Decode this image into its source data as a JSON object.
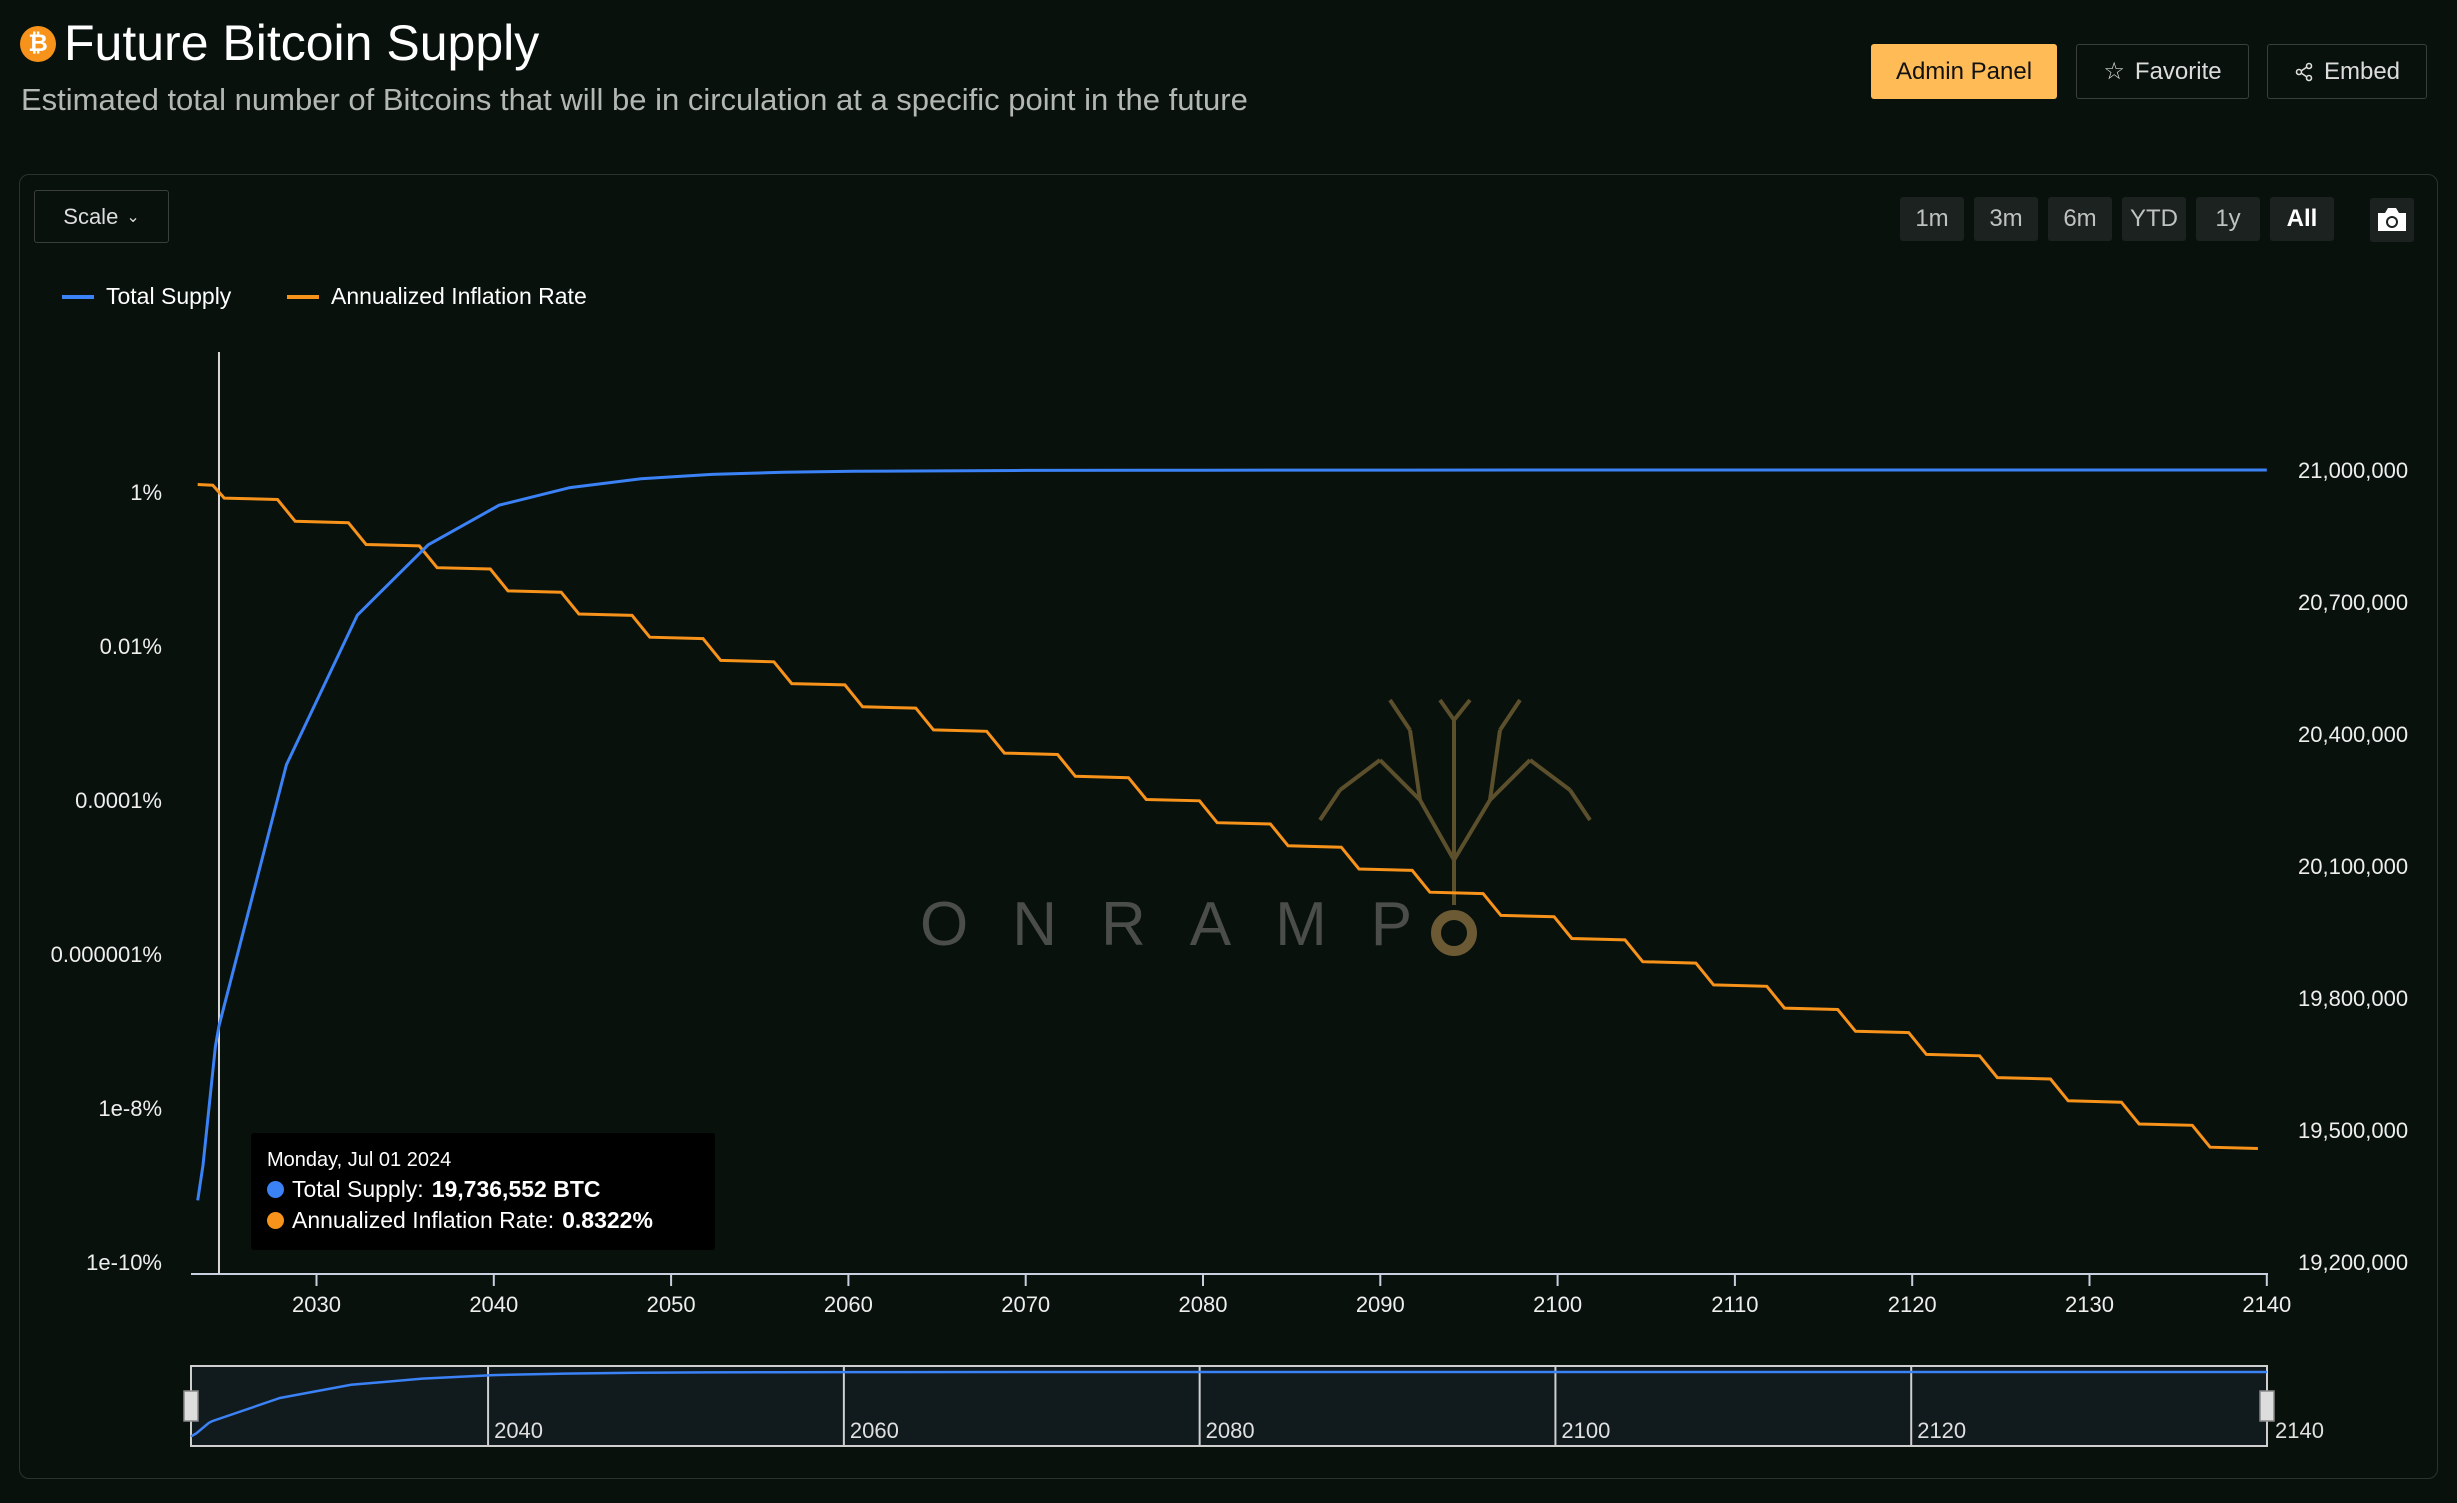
{
  "header": {
    "title": "Future Bitcoin Supply",
    "subtitle": "Estimated total number of Bitcoins that will be in circulation at a specific point in the future",
    "buttons": {
      "admin": "Admin Panel",
      "favorite": "Favorite",
      "embed": "Embed"
    }
  },
  "toolbar": {
    "scale_label": "Scale",
    "ranges": [
      "1m",
      "3m",
      "6m",
      "YTD",
      "1y",
      "All"
    ],
    "active_range": "All"
  },
  "tooltip": {
    "date": "Monday, Jul 01 2024",
    "supply_label": "Total Supply:",
    "supply_value": "19,736,552 BTC",
    "inflation_label": "Annualized Inflation Rate:",
    "inflation_value": "0.8322%"
  },
  "watermark": "ONRAMP",
  "colors": {
    "supply": "#3b82f6",
    "inflation": "#f7931a",
    "accent": "#ffbb55"
  },
  "chart_data": {
    "type": "line",
    "title": "Future Bitcoin Supply",
    "x_range": [
      2023.3,
      2140
    ],
    "x_ticks": [
      "2030",
      "2040",
      "2050",
      "2060",
      "2070",
      "2080",
      "2090",
      "2100",
      "2110",
      "2120",
      "2130",
      "2140"
    ],
    "legend": [
      "Total Supply",
      "Annualized Inflation Rate"
    ],
    "legend_position": "top-left",
    "y_left": {
      "label": "Annualized Inflation Rate",
      "scale": "log",
      "ticks": [
        "1%",
        "0.01%",
        "0.0001%",
        "0.000001%",
        "1e-8%",
        "1e-10%"
      ],
      "tick_values": [
        1,
        0.01,
        0.0001,
        1e-06,
        1e-08,
        1e-10
      ]
    },
    "y_right": {
      "label": "Total Supply",
      "ticks": [
        "21,000,000",
        "20,700,000",
        "20,400,000",
        "20,100,000",
        "19,800,000",
        "19,500,000",
        "19,200,000"
      ],
      "tick_values": [
        21000000,
        20700000,
        20400000,
        20100000,
        19800000,
        19500000,
        19200000
      ]
    },
    "series": [
      {
        "name": "Total Supply",
        "axis": "right",
        "x": [
          2023.3,
          2023.6,
          2024.3,
          2024.5,
          2028.3,
          2032.3,
          2036.3,
          2040.3,
          2044.3,
          2048.3,
          2052.3,
          2056.3,
          2060.3,
          2070,
          2080,
          2100,
          2140
        ],
        "y": [
          19340000,
          19420000,
          19690000,
          19736552,
          20330000,
          20670000,
          20830000,
          20920000,
          20960000,
          20980000,
          20990000,
          20995000,
          20997000,
          20999000,
          20999500,
          20999900,
          21000000
        ]
      },
      {
        "name": "Annualized Inflation Rate",
        "axis": "left",
        "halving_years": [
          2024.3,
          2028.3,
          2032.3,
          2036.3,
          2040.3,
          2044.3,
          2048.3,
          2052.3,
          2056.3,
          2060.3,
          2064.3,
          2068.3,
          2072.3,
          2076.3,
          2080.3,
          2084.3,
          2088.3,
          2092.3,
          2096.3,
          2100.3,
          2104.3,
          2108.3,
          2112.3,
          2116.3,
          2120.3,
          2124.3,
          2128.3,
          2132.3,
          2136.3
        ],
        "start_rate": 1.25,
        "rate_after_2024_halving": 0.8322,
        "end_year": 2140
      }
    ],
    "crosshair_x": 2024.5,
    "navigator": {
      "labels": [
        "2040",
        "2060",
        "2080",
        "2100",
        "2120",
        "2140"
      ]
    }
  }
}
